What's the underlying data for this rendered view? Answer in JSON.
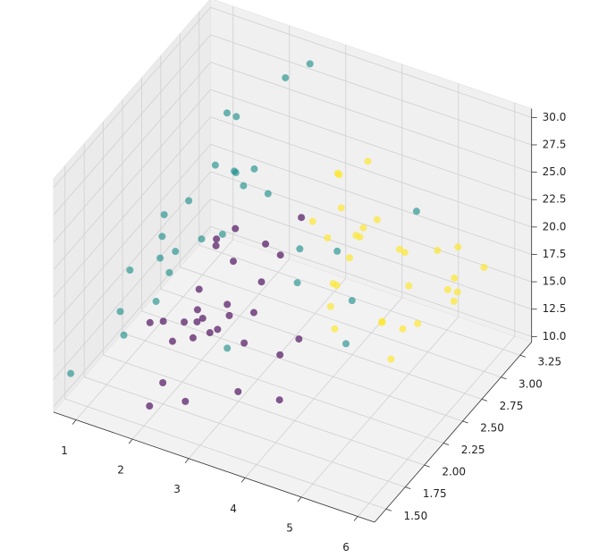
{
  "chart_data": {
    "type": "scatter3d",
    "xlim": [
      0.6,
      6.3
    ],
    "ylim": [
      1.35,
      3.4
    ],
    "zlim": [
      9.5,
      30.8
    ],
    "xticks": [
      1,
      2,
      3,
      4,
      5,
      6
    ],
    "yticks": [
      {
        "value": 1.5,
        "label": "1.50"
      },
      {
        "value": 1.75,
        "label": "1.75"
      },
      {
        "value": 2.0,
        "label": "2.00"
      },
      {
        "value": 2.25,
        "label": "2.25"
      },
      {
        "value": 2.5,
        "label": "2.50"
      },
      {
        "value": 2.75,
        "label": "2.75"
      },
      {
        "value": 3.0,
        "label": "3.00"
      },
      {
        "value": 3.25,
        "label": "3.25"
      }
    ],
    "zticks": [
      {
        "value": 10,
        "label": "10.0"
      },
      {
        "value": 12.5,
        "label": "12.5"
      },
      {
        "value": 15,
        "label": "15.0"
      },
      {
        "value": 17.5,
        "label": "17.5"
      },
      {
        "value": 20,
        "label": "20.0"
      },
      {
        "value": 22.5,
        "label": "22.5"
      },
      {
        "value": 25,
        "label": "25.0"
      },
      {
        "value": 27.5,
        "label": "27.5"
      },
      {
        "value": 30,
        "label": "30.0"
      }
    ],
    "grid": true,
    "series": [
      {
        "color": "#440154",
        "x": [
          2.1,
          2.4,
          1.9,
          2.6,
          2.8,
          3.0,
          2.2,
          2.5,
          1.8,
          2.9,
          3.2,
          2.7,
          2.3,
          2.0,
          3.4,
          2.6,
          2.4,
          3.1,
          1.7,
          2.8,
          3.6,
          2.5,
          2.2,
          3.3,
          2.9,
          4.0,
          3.8,
          2.1,
          2.6,
          3.0
        ],
        "y": [
          1.8,
          1.9,
          2.1,
          1.7,
          2.0,
          2.2,
          1.6,
          2.3,
          1.9,
          1.8,
          2.4,
          2.1,
          2.0,
          2.2,
          1.7,
          1.6,
          2.4,
          2.0,
          1.8,
          2.5,
          2.1,
          1.9,
          2.3,
          2.6,
          1.7,
          1.8,
          2.2,
          1.5,
          2.0,
          2.3
        ],
        "z": [
          15,
          16.5,
          14,
          17,
          18,
          16,
          13,
          19,
          15.5,
          17.5,
          20,
          16,
          18.5,
          14.5,
          13.5,
          12,
          21,
          15,
          16,
          19.5,
          14,
          17,
          20.5,
          22,
          18,
          13,
          15,
          11.5,
          23,
          18
        ]
      },
      {
        "color": "#21918c",
        "x": [
          0.8,
          1.1,
          1.3,
          0.9,
          1.5,
          1.2,
          1.0,
          1.7,
          1.4,
          2.0,
          1.6,
          1.9,
          2.3,
          1.1,
          2.6,
          3.0,
          1.3,
          0.7,
          1.8,
          2.2,
          4.2,
          4.8,
          3.5,
          2.8,
          1.5,
          4.5,
          2.0,
          3.8,
          1.2,
          2.5
        ],
        "y": [
          2.2,
          2.4,
          2.6,
          2.0,
          2.8,
          2.3,
          2.5,
          2.9,
          2.1,
          2.7,
          3.0,
          2.6,
          2.9,
          1.9,
          2.5,
          2.8,
          3.1,
          1.5,
          2.4,
          3.2,
          2.6,
          3.0,
          2.4,
          2.0,
          2.2,
          2.3,
          2.8,
          2.7,
          2.5,
          3.3
        ],
        "z": [
          16,
          18,
          20,
          14,
          22,
          17,
          19,
          21,
          15,
          23,
          25,
          18,
          20,
          13,
          26,
          17,
          24,
          12,
          19,
          28,
          16,
          22,
          18,
          14,
          17,
          15,
          21,
          19,
          16,
          29
        ]
      },
      {
        "color": "#fde725",
        "x": [
          3.5,
          4.0,
          4.5,
          5.0,
          5.5,
          3.8,
          4.2,
          4.8,
          5.2,
          5.8,
          3.6,
          4.4,
          5.0,
          4.1,
          4.6,
          5.4,
          3.9,
          4.3,
          6.0,
          4.7,
          5.1,
          3.7,
          4.9,
          5.6,
          4.0,
          4.5,
          5.3,
          3.4,
          4.2,
          5.9
        ],
        "y": [
          2.6,
          2.8,
          3.0,
          2.7,
          2.5,
          3.1,
          2.4,
          2.9,
          3.2,
          2.8,
          2.9,
          2.6,
          2.4,
          3.0,
          2.7,
          3.1,
          2.5,
          2.3,
          3.0,
          2.2,
          2.6,
          2.8,
          3.2,
          2.9,
          2.5,
          2.1,
          2.3,
          3.0,
          2.7,
          2.6
        ],
        "z": [
          22,
          20,
          18,
          21,
          17,
          24,
          19,
          16,
          15,
          18,
          21,
          23,
          17,
          20,
          14,
          19,
          22,
          16,
          19,
          24,
          15,
          25,
          17,
          16,
          18,
          20,
          15,
          23,
          21,
          20
        ]
      }
    ]
  }
}
